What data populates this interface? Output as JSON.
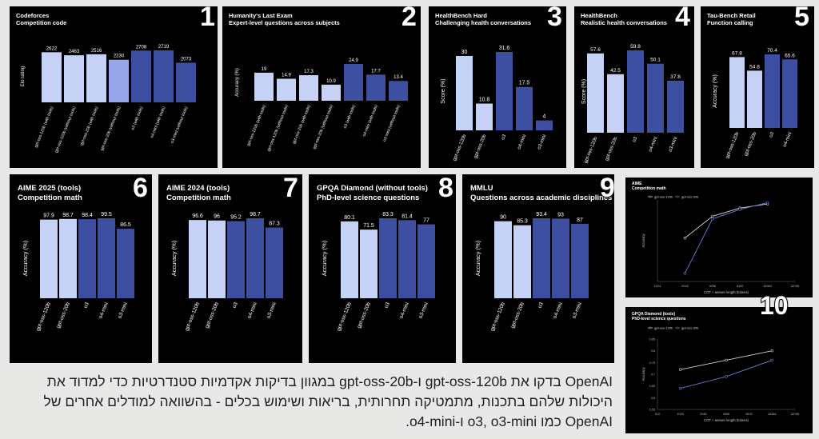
{
  "caption": "OpenAI בדקו את gpt-oss-120b ו-gpt-oss-20b במגוון בדיקות אקדמיות סטנדרטיות כדי למדוד את היכולות שלהם בתכנות, מתמטיקה תחרותית, בריאות ושימוש בכלים - בהשוואה למודלים אחרים של OpenAI כמו o3, o3-mini ו-o4-mini.",
  "colors": {
    "light": "#c6d2f5",
    "mid": "#95a7e6",
    "dark": "#3c4fa0",
    "line_gray": "#d0d0d0",
    "line_blue": "#6a7fd6"
  },
  "chart_data": [
    {
      "number": "1",
      "type": "bar",
      "title": "Codeforces",
      "subtitle": "Competition code",
      "ylabel": "Elo rating",
      "categories": [
        "gpt-oss-120b (with tools)",
        "gpt-oss-120b (without tools)",
        "gpt-oss-20b (with tools)",
        "gpt-oss-20b (without tools)",
        "o3 (with tools)",
        "o4-mini (with tools)",
        "o3-mini (without tools)"
      ],
      "values": [
        2622,
        2463,
        2516,
        2230,
        2708,
        2719,
        2073
      ],
      "labels": [
        "2622",
        "2463",
        "2516",
        "2230",
        "2708",
        "2719",
        "2073"
      ],
      "bar_colors": [
        "light",
        "light",
        "light",
        "mid",
        "dark",
        "dark",
        "dark"
      ],
      "ylim": [
        0,
        3000
      ]
    },
    {
      "number": "2",
      "type": "bar",
      "title": "Humanity's Last Exam",
      "subtitle": "Expert-level questions across subjects",
      "ylabel": "Accuracy (%)",
      "categories": [
        "gpt-oss-120b (with tools)",
        "gpt-oss-120b (without tools)",
        "gpt-oss-20b (with tools)",
        "gpt-oss-20b (without tools)",
        "o3 (with tools)",
        "o4-mini (with tools)",
        "o3-mini (without tools)"
      ],
      "values": [
        19,
        14.9,
        17.3,
        10.9,
        24.9,
        17.7,
        13.4
      ],
      "labels": [
        "19",
        "14.9",
        "17.3",
        "10.9",
        "24.9",
        "17.7",
        "13.4"
      ],
      "bar_colors": [
        "light",
        "light",
        "light",
        "light",
        "dark",
        "dark",
        "dark"
      ],
      "ylim": [
        0,
        30
      ]
    },
    {
      "number": "3",
      "type": "bar",
      "title": "HealthBench Hard",
      "subtitle": "Challenging health conversations",
      "ylabel": "Score (%)",
      "categories": [
        "gpt-oss-120b",
        "gpt-oss-20b",
        "o3",
        "o4-mini",
        "o3-mini"
      ],
      "values": [
        30,
        10.8,
        31.6,
        17.5,
        4
      ],
      "labels": [
        "30",
        "10.8",
        "31.6",
        "17.5",
        "4"
      ],
      "bar_colors": [
        "light",
        "light",
        "dark",
        "dark",
        "dark"
      ],
      "ylim": [
        0,
        36
      ]
    },
    {
      "number": "4",
      "type": "bar",
      "title": "HealthBench",
      "subtitle": "Realistic health conversations",
      "ylabel": "Score (%)",
      "categories": [
        "gpt-oss-120b",
        "gpt-oss-20b",
        "o3",
        "o4-mini",
        "o3-mini"
      ],
      "values": [
        57.6,
        42.5,
        59.8,
        50.1,
        37.8
      ],
      "labels": [
        "57.6",
        "42.5",
        "59.8",
        "50.1",
        "37.8"
      ],
      "bar_colors": [
        "light",
        "light",
        "dark",
        "dark",
        "dark"
      ],
      "ylim": [
        0,
        70
      ]
    },
    {
      "number": "5",
      "type": "bar",
      "title": "Tau-Bench Retail",
      "subtitle": "Function calling",
      "ylabel": "Accuracy (%)",
      "categories": [
        "gpt-oss-120b",
        "gpt-oss-20b",
        "o3",
        "o4-mini"
      ],
      "values": [
        67.8,
        54.8,
        70.4,
        65.6
      ],
      "labels": [
        "67.8",
        "54.8",
        "70.4",
        "65.6"
      ],
      "bar_colors": [
        "light",
        "light",
        "dark",
        "dark"
      ],
      "ylim": [
        0,
        85
      ]
    },
    {
      "number": "6",
      "type": "bar",
      "title": "AIME 2025 (tools)",
      "subtitle": "Competition math",
      "ylabel": "Accuracy (%)",
      "categories": [
        "gpt-oss-120b",
        "gpt-oss-20b",
        "o3",
        "o4-mini",
        "o3-mini"
      ],
      "values": [
        97.9,
        98.7,
        98.4,
        99.5,
        86.5
      ],
      "labels": [
        "97.9",
        "98.7",
        "98.4",
        "99.5",
        "86.5"
      ],
      "bar_colors": [
        "light",
        "light",
        "dark",
        "dark",
        "dark"
      ],
      "ylim": [
        0,
        110
      ]
    },
    {
      "number": "7",
      "type": "bar",
      "title": "AIME 2024 (tools)",
      "subtitle": "Competition math",
      "ylabel": "Accuracy (%)",
      "categories": [
        "gpt-oss-120b",
        "gpt-oss-20b",
        "o3",
        "o4-mini",
        "o3-mini"
      ],
      "values": [
        96.6,
        96,
        95.2,
        98.7,
        87.3
      ],
      "labels": [
        "96.6",
        "96",
        "95.2",
        "98.7",
        "87.3"
      ],
      "bar_colors": [
        "light",
        "light",
        "dark",
        "dark",
        "dark"
      ],
      "ylim": [
        0,
        110
      ]
    },
    {
      "number": "8",
      "type": "bar",
      "title": "GPQA Diamond (without tools)",
      "subtitle": "PhD-level science questions",
      "ylabel": "Accuracy (%)",
      "categories": [
        "gpt-oss-120b",
        "gpt-oss-20b",
        "o3",
        "o4-mini",
        "o3-mini"
      ],
      "values": [
        80.1,
        71.5,
        83.3,
        81.4,
        77
      ],
      "labels": [
        "80.1",
        "71.5",
        "83.3",
        "81.4",
        "77"
      ],
      "bar_colors": [
        "light",
        "light",
        "dark",
        "dark",
        "dark"
      ],
      "ylim": [
        0,
        95
      ]
    },
    {
      "number": "9",
      "type": "bar",
      "title": "MMLU",
      "subtitle": "Questions across academic disciplines",
      "ylabel": "Accuracy (%)",
      "categories": [
        "gpt-oss-120b",
        "gpt-oss-20b",
        "o3",
        "o4-mini",
        "o3-mini"
      ],
      "values": [
        90,
        85.3,
        93.4,
        93,
        87
      ],
      "labels": [
        "90",
        "85.3",
        "93.4",
        "93",
        "87"
      ],
      "bar_colors": [
        "light",
        "light",
        "dark",
        "dark",
        "dark"
      ],
      "ylim": [
        0,
        105
      ]
    },
    {
      "number": "",
      "type": "line",
      "title": "AIME",
      "subtitle": "Competition math",
      "ylabel": "Accuracy",
      "xlabel": "COT + answer length (tokens)",
      "xticks": [
        "1024",
        "2048",
        "4096",
        "8192",
        "16384",
        "32768"
      ],
      "x": [
        2048,
        4096,
        8192,
        16384
      ],
      "series": [
        {
          "name": "gpt-oss-120b",
          "values": [
            0.72,
            0.88,
            0.94,
            0.97
          ],
          "color": "line_gray"
        },
        {
          "name": "gpt-oss-20b",
          "values": [
            0.46,
            0.86,
            0.93,
            0.98
          ],
          "color": "line_blue"
        }
      ],
      "ylim": [
        0.4,
        1.0
      ],
      "legend": "top-left"
    },
    {
      "number": "10",
      "type": "line",
      "title": "GPQA Diamond (tools)",
      "subtitle": "PhD-level science questions",
      "ylabel": "Accuracy",
      "xlabel": "COT + answer length (tokens)",
      "xticks": [
        "512",
        "1024",
        "2048",
        "4096",
        "8192",
        "16384",
        "32768"
      ],
      "yticks": [
        "0.55",
        "0.6",
        "0.65",
        "0.7",
        "0.75",
        "0.8",
        "0.85"
      ],
      "x": [
        1024,
        4096,
        16384
      ],
      "series": [
        {
          "name": "gpt-oss-120b",
          "values": [
            0.72,
            0.76,
            0.8
          ],
          "color": "line_gray"
        },
        {
          "name": "gpt-oss-20b",
          "values": [
            0.64,
            0.69,
            0.76
          ],
          "color": "line_blue"
        }
      ],
      "ylim": [
        0.55,
        0.85
      ],
      "legend": "top-left"
    }
  ]
}
